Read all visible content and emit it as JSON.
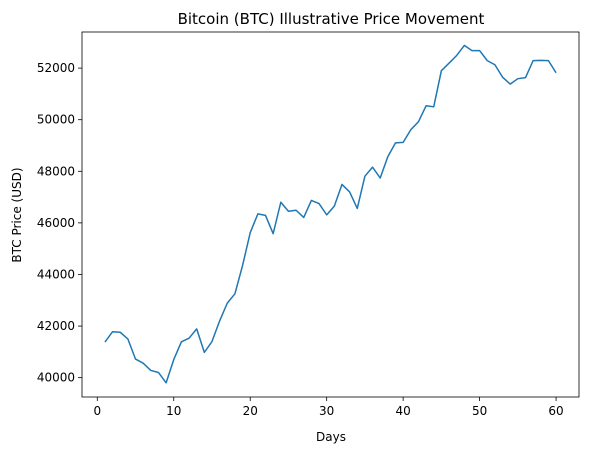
{
  "chart_data": {
    "type": "line",
    "title": "Bitcoin (BTC) Illustrative Price Movement",
    "xlabel": "Days",
    "ylabel": "BTC Price (USD)",
    "xlim": [
      -2,
      63
    ],
    "ylim": [
      39250,
      53400
    ],
    "xticks": [
      0,
      10,
      20,
      30,
      40,
      50,
      60
    ],
    "yticks": [
      40000,
      42000,
      44000,
      46000,
      48000,
      50000,
      52000
    ],
    "grid": false,
    "series": [
      {
        "color": "#1f77b4",
        "x": [
          1,
          2,
          3,
          4,
          5,
          6,
          7,
          8,
          9,
          10,
          11,
          12,
          13,
          14,
          15,
          16,
          17,
          18,
          19,
          20,
          21,
          22,
          23,
          24,
          25,
          26,
          27,
          28,
          29,
          30,
          31,
          32,
          33,
          34,
          35,
          36,
          37,
          38,
          39,
          40,
          41,
          42,
          43,
          44,
          45,
          46,
          47,
          48,
          49,
          50,
          51,
          52,
          53,
          54,
          55,
          56,
          57,
          58,
          59,
          60
        ],
        "values": [
          41380,
          41780,
          41760,
          41500,
          40720,
          40560,
          40280,
          40200,
          39800,
          40700,
          41390,
          41530,
          41890,
          40980,
          41400,
          42200,
          42890,
          43250,
          44350,
          45620,
          46350,
          46290,
          45580,
          46800,
          46450,
          46490,
          46210,
          46870,
          46750,
          46310,
          46650,
          47490,
          47200,
          46560,
          47810,
          48160,
          47740,
          48570,
          49100,
          49120,
          49610,
          49920,
          50540,
          50500,
          51900,
          52190,
          52490,
          52880,
          52680,
          52680,
          52290,
          52130,
          51650,
          51380,
          51590,
          51630,
          52290,
          52300,
          52290,
          51820
        ]
      }
    ]
  }
}
